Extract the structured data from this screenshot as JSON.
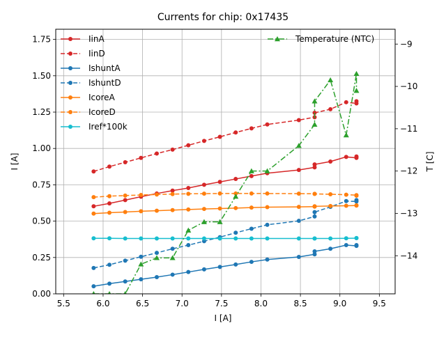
{
  "chart_data": {
    "type": "line",
    "title": "Currents for chip: 0x17435",
    "xlabel": "I [A]",
    "ylabel": "I [A]",
    "y2label": "T [C]",
    "xlim": [
      5.4,
      9.7
    ],
    "ylim": [
      0,
      1.82
    ],
    "y2lim": [
      -14.9,
      -8.65
    ],
    "grid": true,
    "legend_left_position": "upper-left",
    "legend_right_position": "upper-right",
    "x_ticks": [
      5.5,
      6.0,
      6.5,
      7.0,
      7.5,
      8.0,
      8.5,
      9.0,
      9.5
    ],
    "x_tick_labels": [
      "5.5",
      "6.0",
      "6.5",
      "7.0",
      "7.5",
      "8.0",
      "8.5",
      "9.0",
      "9.5"
    ],
    "y_ticks": [
      0,
      0.25,
      0.5,
      0.75,
      1.0,
      1.25,
      1.5,
      1.75
    ],
    "y_tick_labels": [
      "0.00",
      "0.25",
      "0.50",
      "0.75",
      "1.00",
      "1.25",
      "1.50",
      "1.75"
    ],
    "y2_ticks": [
      -14,
      -13,
      -12,
      -11,
      -10,
      -9
    ],
    "y2_tick_labels": [
      "−14",
      "−13",
      "−12",
      "−11",
      "−10",
      "−9"
    ],
    "x": [
      5.88,
      6.08,
      6.28,
      6.48,
      6.68,
      6.88,
      7.08,
      7.28,
      7.48,
      7.68,
      7.88,
      8.08,
      8.48,
      8.68,
      8.68,
      8.88,
      9.08,
      9.21,
      9.21
    ],
    "series": [
      {
        "name": "IinA",
        "axis": "left",
        "color": "#d62728",
        "style": "solid",
        "values": [
          0.602,
          0.622,
          0.645,
          0.668,
          0.69,
          0.71,
          0.728,
          0.75,
          0.77,
          0.79,
          0.81,
          0.83,
          0.852,
          0.87,
          0.89,
          0.91,
          0.942,
          0.935,
          0.945
        ]
      },
      {
        "name": "IinD",
        "axis": "left",
        "color": "#d62728",
        "style": "dashed",
        "values": [
          0.842,
          0.875,
          0.905,
          0.935,
          0.965,
          0.992,
          1.022,
          1.052,
          1.08,
          1.11,
          1.138,
          1.165,
          1.195,
          1.215,
          1.245,
          1.27,
          1.318,
          1.31,
          1.325
        ]
      },
      {
        "name": "IshuntA",
        "axis": "left",
        "color": "#1f77b4",
        "style": "solid",
        "values": [
          0.052,
          0.07,
          0.085,
          0.1,
          0.115,
          0.132,
          0.15,
          0.168,
          0.185,
          0.202,
          0.22,
          0.236,
          0.254,
          0.272,
          0.292,
          0.31,
          0.335,
          0.33,
          0.335
        ]
      },
      {
        "name": "IshuntD",
        "axis": "left",
        "color": "#1f77b4",
        "style": "dashed",
        "values": [
          0.178,
          0.2,
          0.228,
          0.255,
          0.282,
          0.31,
          0.335,
          0.362,
          0.39,
          0.42,
          0.448,
          0.475,
          0.502,
          0.532,
          0.562,
          0.598,
          0.638,
          0.635,
          0.645
        ]
      },
      {
        "name": "IcoreA",
        "axis": "left",
        "color": "#ff7f0e",
        "style": "solid",
        "values": [
          0.552,
          0.558,
          0.563,
          0.568,
          0.572,
          0.576,
          0.58,
          0.584,
          0.587,
          0.59,
          0.593,
          0.596,
          0.598,
          0.6,
          0.602,
          0.604,
          0.606,
          0.607,
          0.609
        ]
      },
      {
        "name": "IcoreD",
        "axis": "left",
        "color": "#ff7f0e",
        "style": "dashed",
        "values": [
          0.665,
          0.672,
          0.676,
          0.68,
          0.683,
          0.686,
          0.688,
          0.689,
          0.69,
          0.69,
          0.69,
          0.69,
          0.689,
          0.688,
          0.687,
          0.685,
          0.682,
          0.679,
          0.675
        ]
      },
      {
        "name": "Iref*100k",
        "axis": "left",
        "color": "#17becf",
        "style": "solid",
        "values": [
          0.382,
          0.382,
          0.381,
          0.381,
          0.381,
          0.381,
          0.381,
          0.381,
          0.381,
          0.381,
          0.381,
          0.381,
          0.381,
          0.381,
          0.381,
          0.381,
          0.382,
          0.383,
          0.384
        ]
      },
      {
        "name": "Temperature (NTC)",
        "axis": "right",
        "color": "#2ca02c",
        "style": "dashdot",
        "values": [
          -14.9,
          -14.9,
          -14.9,
          -14.2,
          -14.05,
          -14.05,
          -13.4,
          -13.2,
          -13.2,
          -12.6,
          -12,
          -12,
          -11.4,
          -10.9,
          -10.35,
          -9.85,
          -11.15,
          -9.7,
          -10.1
        ]
      }
    ]
  }
}
